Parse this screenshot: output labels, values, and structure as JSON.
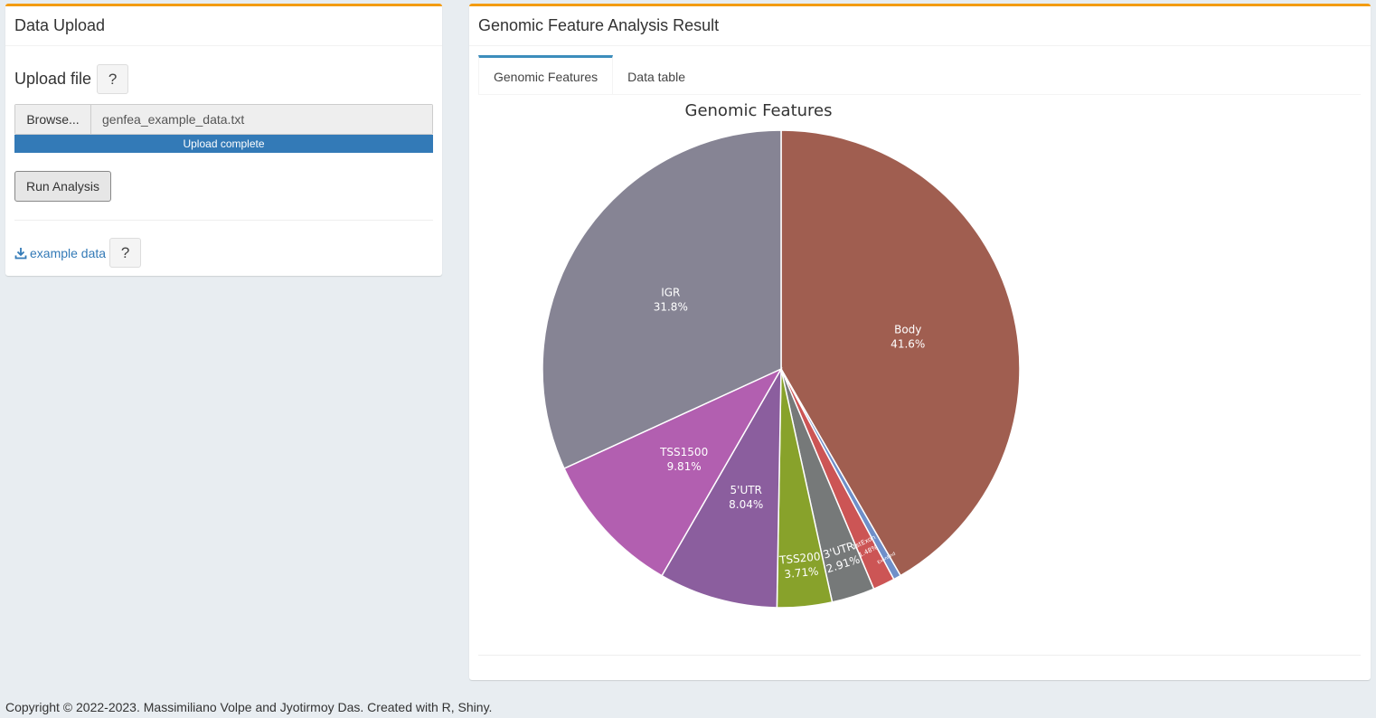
{
  "upload_panel": {
    "title": "Data Upload",
    "upload_label": "Upload file",
    "help_label": "?",
    "browse_label": "Browse...",
    "file_name": "genfea_example_data.txt",
    "progress_text": "Upload complete",
    "progress_fraction": 1.0,
    "run_label": "Run Analysis",
    "example_label": "example data",
    "example_help_label": "?"
  },
  "result_panel": {
    "title": "Genomic Feature Analysis Result",
    "tabs": [
      {
        "label": "Genomic Features",
        "active": true
      },
      {
        "label": "Data table",
        "active": false
      }
    ]
  },
  "colors": {
    "box_top_border": "#f39c12",
    "primary": "#337ab7",
    "tab_active": "#3c8dbc"
  },
  "chart_data": {
    "type": "pie",
    "title": "Genomic Features",
    "direction": "clockwise",
    "start": "top",
    "slices": [
      {
        "label": "Body",
        "value": 41.6,
        "display": "41.6%",
        "color": "#a05e50"
      },
      {
        "label": "ExonBnd",
        "value": 0.51,
        "display": "",
        "color": "#6f8fc9"
      },
      {
        "label": "1stExon",
        "value": 1.48,
        "display": "1.48%",
        "color": "#cc5555"
      },
      {
        "label": "3'UTR",
        "value": 2.91,
        "display": "2.91%",
        "color": "#767979"
      },
      {
        "label": "TSS200",
        "value": 3.71,
        "display": "3.71%",
        "color": "#88a22b"
      },
      {
        "label": "5'UTR",
        "value": 8.04,
        "display": "8.04%",
        "color": "#8b5e9e"
      },
      {
        "label": "TSS1500",
        "value": 9.81,
        "display": "9.81%",
        "color": "#b25fb0"
      },
      {
        "label": "IGR",
        "value": 31.8,
        "display": "31.8%",
        "color": "#868494"
      }
    ]
  },
  "footer": {
    "text": "Copyright © 2022-2023. Massimiliano Volpe and Jyotirmoy Das. Created with R, Shiny."
  }
}
